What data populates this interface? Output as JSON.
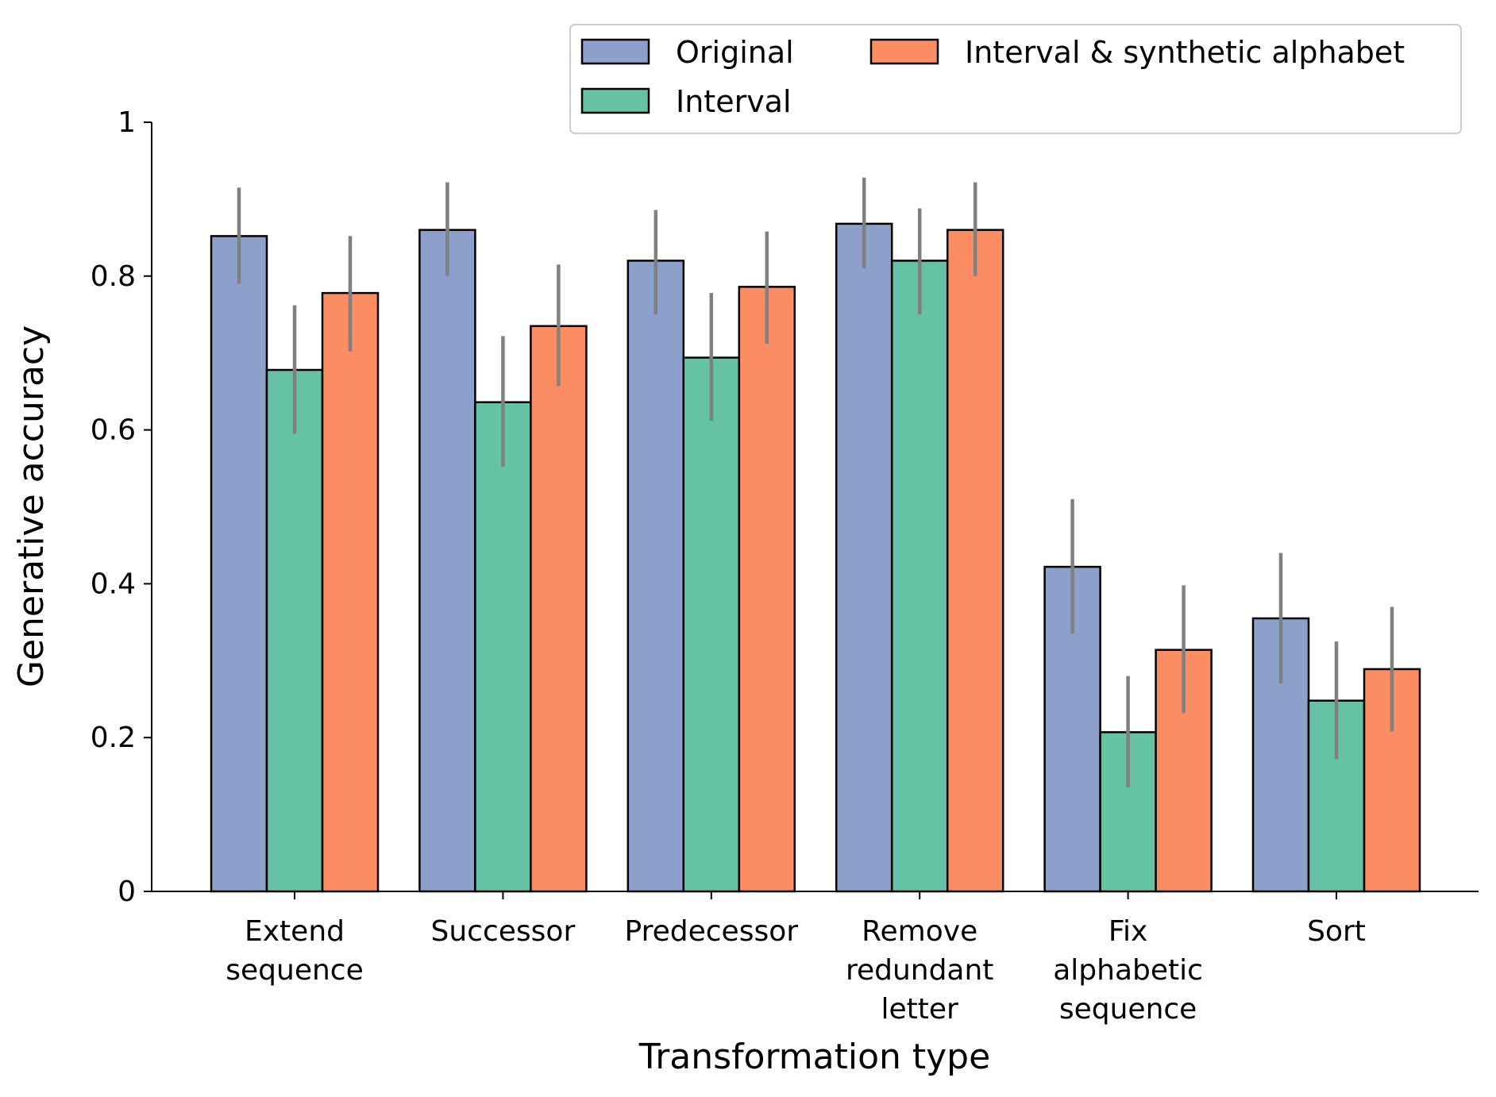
{
  "chart_data": {
    "type": "bar",
    "title": "",
    "xlabel": "Transformation type",
    "ylabel": "Generative accuracy",
    "ylim": [
      0,
      1
    ],
    "yticks": [
      0,
      0.2,
      0.4,
      0.6,
      0.8,
      1
    ],
    "ytick_labels": [
      "0",
      "0.2",
      "0.4",
      "0.6",
      "0.8",
      "1"
    ],
    "grid": false,
    "legend_position": "top-right",
    "categories": [
      [
        "Extend",
        "sequence"
      ],
      [
        "Successor"
      ],
      [
        "Predecessor"
      ],
      [
        "Remove",
        "redundant",
        "letter"
      ],
      [
        "Fix",
        "alphabetic",
        "sequence"
      ],
      [
        "Sort"
      ]
    ],
    "series": [
      {
        "name": "Original",
        "color": "#8da0cb",
        "values": [
          0.852,
          0.86,
          0.82,
          0.868,
          0.422,
          0.355
        ],
        "error_low": [
          0.79,
          0.8,
          0.75,
          0.81,
          0.335,
          0.27
        ],
        "error_high": [
          0.915,
          0.922,
          0.886,
          0.928,
          0.51,
          0.44
        ]
      },
      {
        "name": "Interval",
        "color": "#66c2a5",
        "values": [
          0.678,
          0.636,
          0.694,
          0.82,
          0.207,
          0.248
        ],
        "error_low": [
          0.595,
          0.552,
          0.612,
          0.75,
          0.135,
          0.172
        ],
        "error_high": [
          0.762,
          0.722,
          0.778,
          0.888,
          0.28,
          0.325
        ]
      },
      {
        "name": "Interval & synthetic alphabet",
        "color": "#fc8d62",
        "values": [
          0.778,
          0.735,
          0.786,
          0.86,
          0.314,
          0.289
        ],
        "error_low": [
          0.702,
          0.657,
          0.712,
          0.8,
          0.232,
          0.208
        ],
        "error_high": [
          0.852,
          0.815,
          0.858,
          0.922,
          0.398,
          0.37
        ]
      }
    ],
    "error_bar_color": "#808080"
  }
}
